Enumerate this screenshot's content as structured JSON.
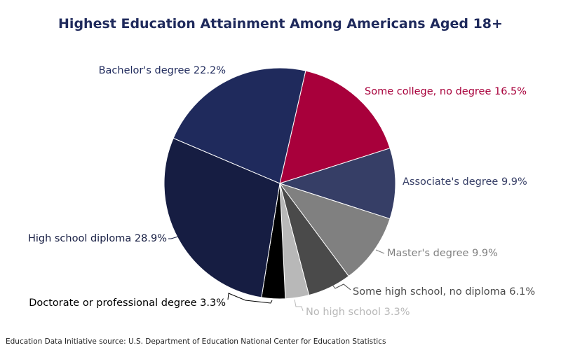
{
  "chart_data": {
    "type": "pie",
    "title": "Highest Education Attainment Among Americans Aged 18+",
    "source": "Education Data Initiative source: U.S. Department of Education National Center for Education Statistics",
    "start_angle_deg": 12.9,
    "direction": "clockwise",
    "slices": [
      {
        "label": "Some college, no degree",
        "value": 16.5,
        "display": "Some college, no degree 16.5%",
        "color": "#a8003b",
        "label_color": "#a8003b"
      },
      {
        "label": "Associate's degree",
        "value": 9.9,
        "display": "Associate's degree 9.9%",
        "color": "#363e66",
        "label_color": "#363e66"
      },
      {
        "label": "Master's degree",
        "value": 9.9,
        "display": "Master's degree 9.9%",
        "color": "#808080",
        "label_color": "#808080"
      },
      {
        "label": "Some high school, no diploma",
        "value": 6.1,
        "display": "Some high school, no diploma 6.1%",
        "color": "#4a4a4a",
        "label_color": "#4a4a4a"
      },
      {
        "label": "No high school",
        "value": 3.3,
        "display": "No high school 3.3%",
        "color": "#b8b8b8",
        "label_color": "#b8b8b8"
      },
      {
        "label": "Doctorate or professional degree",
        "value": 3.3,
        "display": "Doctorate or professional degree 3.3%",
        "color": "#000000",
        "label_color": "#000000"
      },
      {
        "label": "High school diploma",
        "value": 28.9,
        "display": "High school diploma 28.9%",
        "color": "#161d42",
        "label_color": "#161d42"
      },
      {
        "label": "Bachelor's degree",
        "value": 22.2,
        "display": "Bachelor's degree 22.2%",
        "color": "#1f2a5c",
        "label_color": "#1f2a5c"
      }
    ]
  }
}
